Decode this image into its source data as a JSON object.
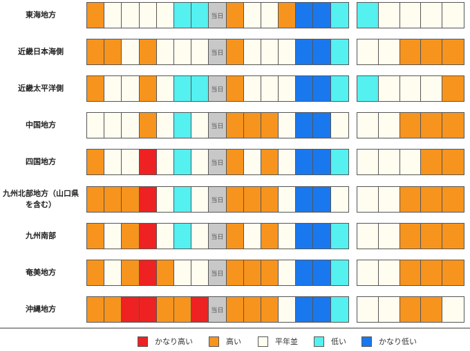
{
  "chart_data": {
    "type": "heatmap",
    "center_label": "当日",
    "colors": {
      "very_high": "#ee2222",
      "high": "#f7941d",
      "normal": "#fffdf0",
      "low": "#55f0f0",
      "very_low": "#1a78ee",
      "today": "#c8c8c8"
    },
    "legend": [
      {
        "key": "very_high",
        "label": "かなり高い"
      },
      {
        "key": "high",
        "label": "高い"
      },
      {
        "key": "normal",
        "label": "平年並"
      },
      {
        "key": "low",
        "label": "低い"
      },
      {
        "key": "very_low",
        "label": "かなり低い"
      }
    ],
    "regions": [
      {
        "name": "東海地方",
        "left": [
          "high",
          "normal",
          "normal",
          "normal",
          "normal",
          "low",
          "low",
          "today",
          "high",
          "normal",
          "normal",
          "high",
          "very_low",
          "very_low",
          "low"
        ],
        "right": [
          "low",
          "normal",
          "normal",
          "normal",
          "normal"
        ]
      },
      {
        "name": "近畿日本海側",
        "left": [
          "high",
          "high",
          "normal",
          "high",
          "normal",
          "normal",
          "normal",
          "today",
          "high",
          "normal",
          "normal",
          "normal",
          "very_low",
          "very_low",
          "low"
        ],
        "right": [
          "normal",
          "normal",
          "high",
          "high",
          "high"
        ]
      },
      {
        "name": "近畿太平洋側",
        "left": [
          "high",
          "normal",
          "normal",
          "high",
          "normal",
          "low",
          "low",
          "today",
          "high",
          "normal",
          "normal",
          "normal",
          "very_low",
          "very_low",
          "low"
        ],
        "right": [
          "low",
          "normal",
          "normal",
          "normal",
          "high"
        ]
      },
      {
        "name": "中国地方",
        "left": [
          "normal",
          "normal",
          "normal",
          "high",
          "normal",
          "low",
          "normal",
          "today",
          "high",
          "high",
          "high",
          "normal",
          "very_low",
          "very_low",
          "normal"
        ],
        "right": [
          "normal",
          "normal",
          "high",
          "high",
          "high"
        ]
      },
      {
        "name": "四国地方",
        "left": [
          "high",
          "normal",
          "normal",
          "very_high",
          "normal",
          "low",
          "normal",
          "today",
          "high",
          "normal",
          "high",
          "normal",
          "very_low",
          "very_low",
          "low"
        ],
        "right": [
          "normal",
          "normal",
          "normal",
          "high",
          "high"
        ]
      },
      {
        "name": "九州北部地方（山口県を含む）",
        "left": [
          "high",
          "high",
          "high",
          "very_high",
          "normal",
          "low",
          "normal",
          "today",
          "high",
          "high",
          "high",
          "normal",
          "very_low",
          "very_low",
          "normal"
        ],
        "right": [
          "normal",
          "normal",
          "high",
          "high",
          "high"
        ]
      },
      {
        "name": "九州南部",
        "left": [
          "high",
          "normal",
          "high",
          "very_high",
          "normal",
          "low",
          "normal",
          "today",
          "high",
          "normal",
          "high",
          "normal",
          "very_low",
          "very_low",
          "low"
        ],
        "right": [
          "normal",
          "normal",
          "high",
          "high",
          "high"
        ]
      },
      {
        "name": "奄美地方",
        "left": [
          "high",
          "normal",
          "high",
          "very_high",
          "high",
          "normal",
          "normal",
          "today",
          "high",
          "high",
          "high",
          "normal",
          "very_low",
          "very_low",
          "low"
        ],
        "right": [
          "normal",
          "normal",
          "high",
          "high",
          "high"
        ]
      },
      {
        "name": "沖縄地方",
        "left": [
          "high",
          "high",
          "very_high",
          "very_high",
          "high",
          "high",
          "very_high",
          "today",
          "high",
          "high",
          "high",
          "normal",
          "very_low",
          "very_low",
          "low"
        ],
        "right": [
          "normal",
          "normal",
          "high",
          "high",
          "normal"
        ]
      }
    ]
  }
}
